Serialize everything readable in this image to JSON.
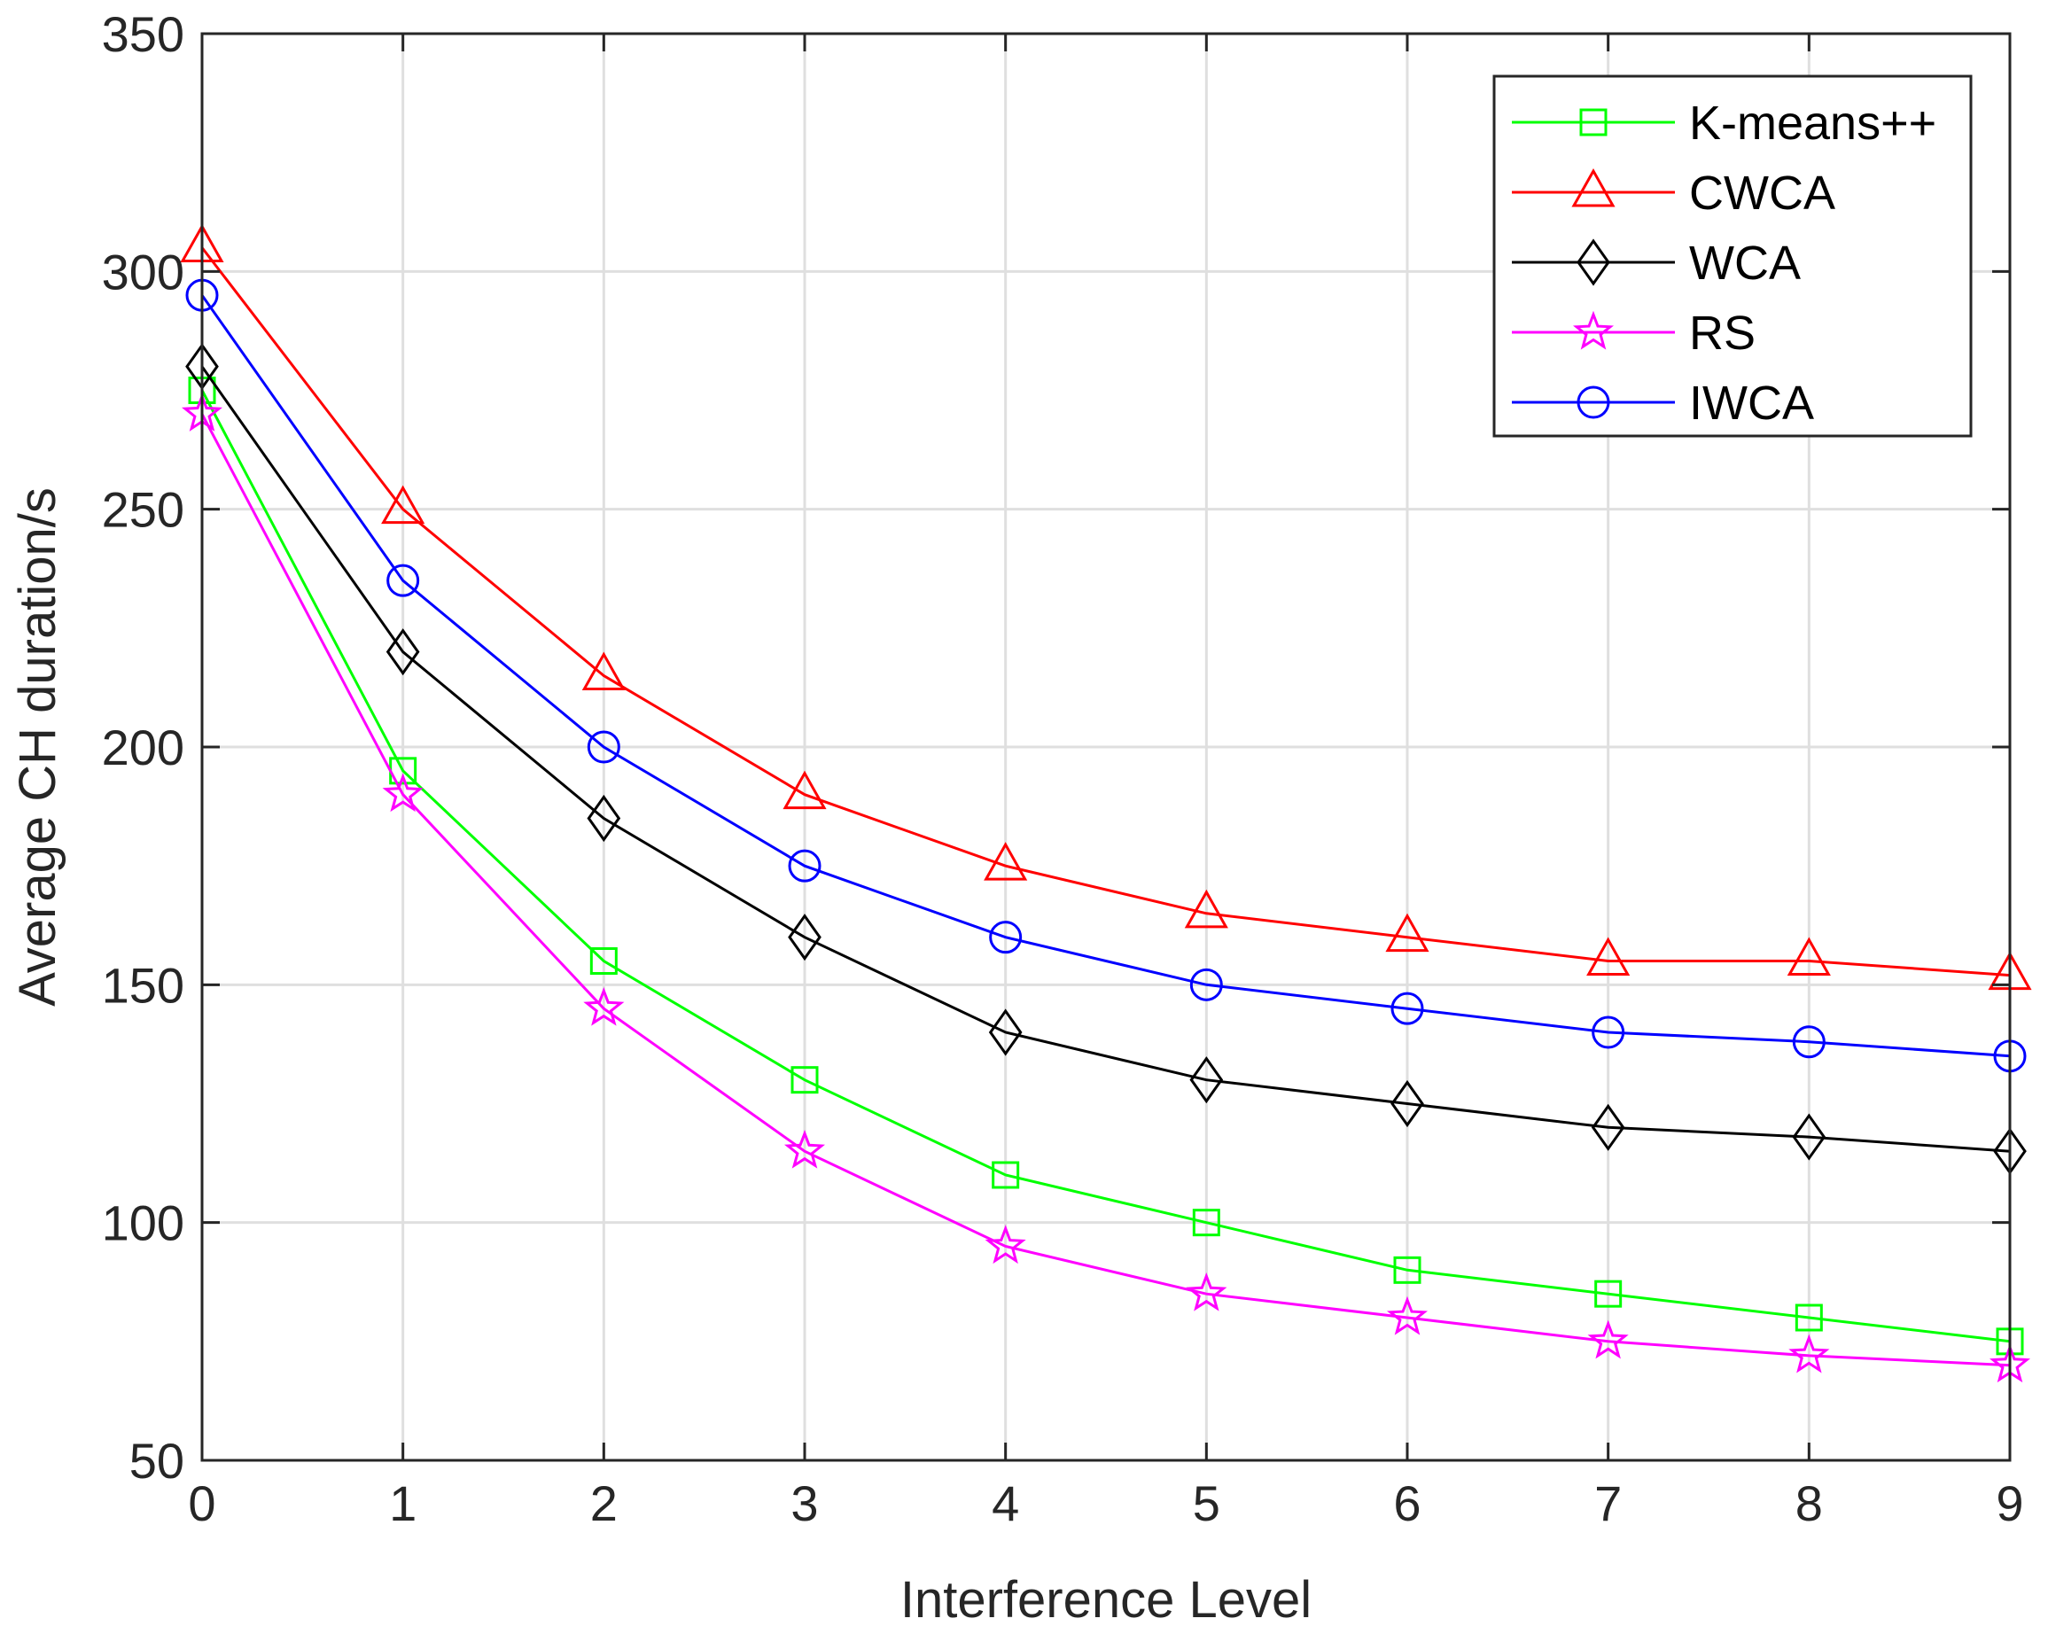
{
  "chart_data": {
    "type": "line",
    "title": "",
    "xlabel": "Interference Level",
    "ylabel": "Average CH duration/s",
    "xlim": [
      0,
      9
    ],
    "ylim": [
      50,
      350
    ],
    "grid": true,
    "legend_position": "top-right",
    "x": [
      0,
      1,
      2,
      3,
      4,
      5,
      6,
      7,
      8,
      9
    ],
    "xticks": [
      "0",
      "1",
      "2",
      "3",
      "4",
      "5",
      "6",
      "7",
      "8",
      "9"
    ],
    "yticks": [
      "50",
      "100",
      "150",
      "200",
      "250",
      "300",
      "350"
    ],
    "series": [
      {
        "name": "K-means++",
        "color": "#00ff00",
        "marker": "square",
        "values": [
          275,
          195,
          155,
          130,
          110,
          100,
          90,
          85,
          80,
          75
        ]
      },
      {
        "name": "CWCA",
        "color": "#ff0000",
        "marker": "triangle",
        "values": [
          305,
          250,
          215,
          190,
          175,
          165,
          160,
          155,
          155,
          152
        ]
      },
      {
        "name": "WCA",
        "color": "#000000",
        "marker": "diamond",
        "values": [
          280,
          220,
          185,
          160,
          140,
          130,
          125,
          120,
          118,
          115
        ]
      },
      {
        "name": "RS",
        "color": "#ff00ff",
        "marker": "star",
        "values": [
          270,
          190,
          145,
          115,
          95,
          85,
          80,
          75,
          72,
          70
        ]
      },
      {
        "name": "IWCA",
        "color": "#0000ff",
        "marker": "circle",
        "values": [
          295,
          235,
          200,
          175,
          160,
          150,
          145,
          140,
          138,
          135
        ]
      }
    ]
  }
}
